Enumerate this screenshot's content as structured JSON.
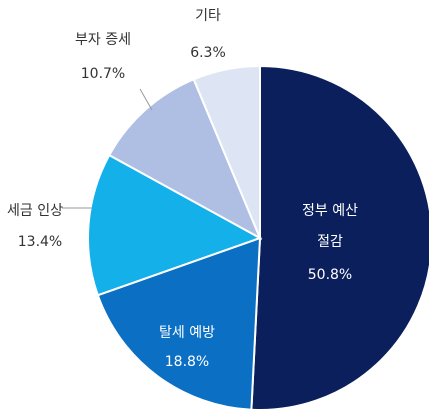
{
  "chart_data": {
    "type": "pie",
    "title": "",
    "start_angle_deg": 0,
    "direction": "clockwise",
    "slices": [
      {
        "name": "정부 예산 절감",
        "label_lines": [
          "정부 예산",
          "절감"
        ],
        "value": 50.8,
        "value_label": "50.8%",
        "color": "#0a1f5c",
        "label_color": "#ffffff",
        "label_position": "inside"
      },
      {
        "name": "탈세 예방",
        "label_lines": [
          "탈세 예방"
        ],
        "value": 18.8,
        "value_label": "18.8%",
        "color": "#0b6fc4",
        "label_color": "#ffffff",
        "label_position": "inside"
      },
      {
        "name": "세금 인상",
        "label_lines": [
          "세금 인상"
        ],
        "value": 13.4,
        "value_label": "13.4%",
        "color": "#13b0ea",
        "label_color": "#333333",
        "label_position": "outside"
      },
      {
        "name": "부자 증세",
        "label_lines": [
          "부자 증세"
        ],
        "value": 10.7,
        "value_label": "10.7%",
        "color": "#aebfe3",
        "label_color": "#333333",
        "label_position": "outside"
      },
      {
        "name": "기타",
        "label_lines": [
          "기타"
        ],
        "value": 6.3,
        "value_label": "6.3%",
        "color": "#dde5f4",
        "label_color": "#333333",
        "label_position": "outside"
      }
    ]
  }
}
